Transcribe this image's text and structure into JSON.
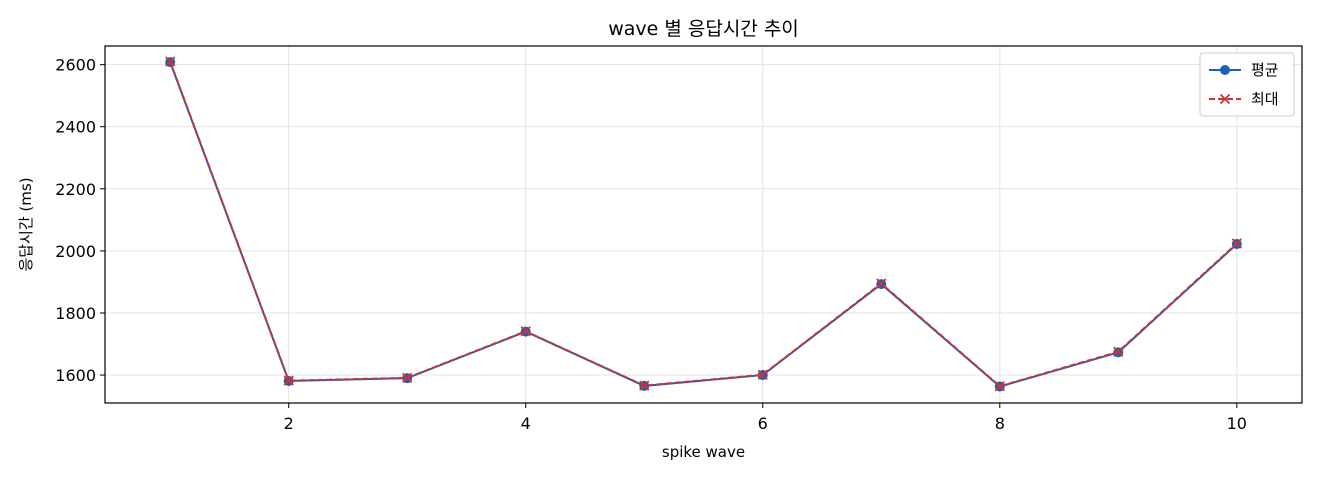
{
  "chart_data": {
    "type": "line",
    "title": "wave 별 응답시간 추이",
    "xlabel": "spike wave",
    "ylabel": "응답시간 (ms)",
    "x": [
      1,
      2,
      3,
      4,
      5,
      6,
      7,
      8,
      9,
      10
    ],
    "xlim": [
      0.45,
      10.55
    ],
    "ylim": [
      1510,
      2660
    ],
    "xticks": [
      2,
      4,
      6,
      8,
      10
    ],
    "yticks": [
      1600,
      1800,
      2000,
      2200,
      2400,
      2600
    ],
    "grid": true,
    "legend_position": "top-right",
    "series": [
      {
        "name": "평균",
        "values": [
          2608,
          1581,
          1590,
          1740,
          1565,
          1600,
          1893,
          1563,
          1673,
          2022
        ],
        "color": "#1f5fb8",
        "marker": "circle",
        "line_style": "solid"
      },
      {
        "name": "최대",
        "values": [
          2610,
          1582,
          1591,
          1741,
          1566,
          1601,
          1895,
          1564,
          1675,
          2024
        ],
        "color": "#cc3333",
        "marker": "x",
        "line_style": "dashed"
      }
    ]
  }
}
